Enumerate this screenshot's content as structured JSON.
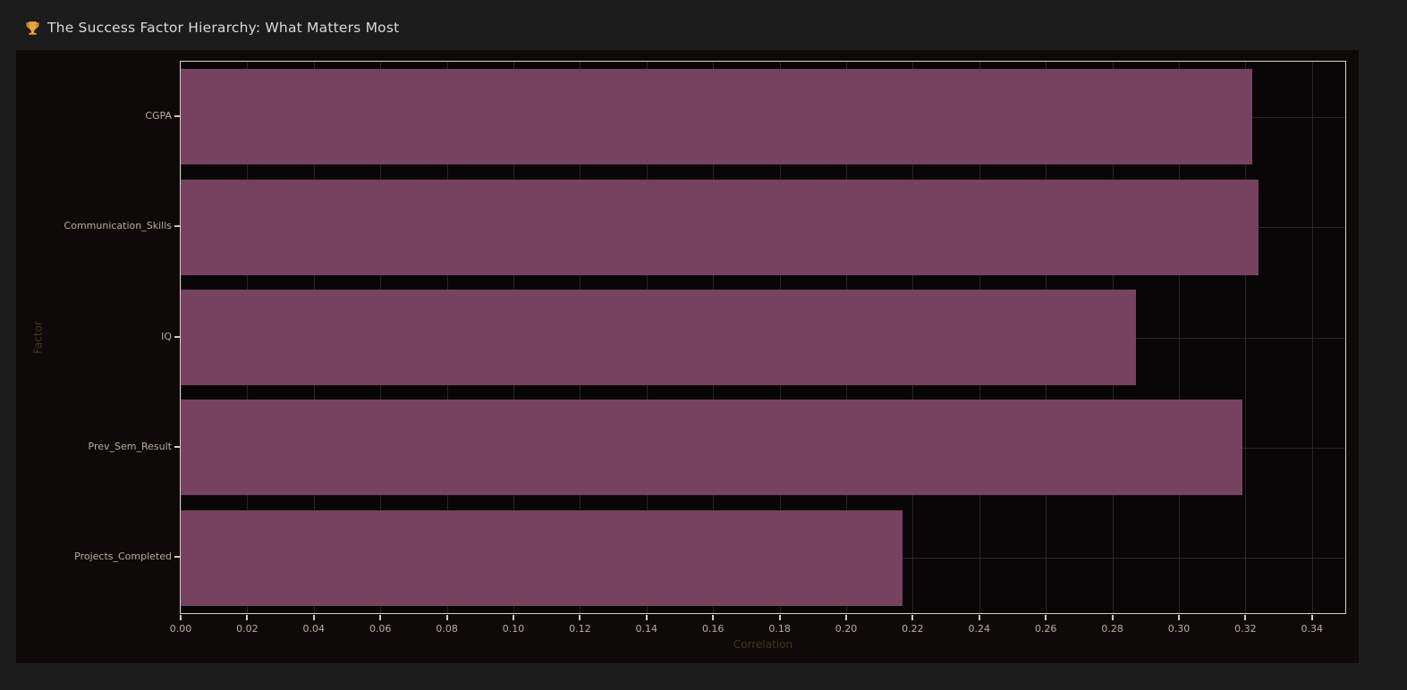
{
  "page": {
    "background": "#1c1c1c"
  },
  "header": {
    "title_icon": "trophy-icon",
    "title_text": "The Success Factor Hierarchy: What Matters Most",
    "full_title": "🏆 The Success Factor Hierarchy: What Matters Most"
  },
  "chart_data": {
    "type": "bar",
    "orientation": "horizontal",
    "title": "🏆 The Success Factor Hierarchy: What Matters Most",
    "categories": [
      "CGPA",
      "Communication_Skills",
      "IQ",
      "Prev_Sem_Result",
      "Projects_Completed"
    ],
    "values": [
      0.322,
      0.324,
      0.287,
      0.319,
      0.217
    ],
    "xlabel": "Correlation",
    "ylabel": "Factor",
    "xlim": [
      0,
      0.35
    ],
    "xtick_labels": [
      "0.00",
      "0.02",
      "0.04",
      "0.06",
      "0.08",
      "0.10",
      "0.12",
      "0.14",
      "0.16",
      "0.18",
      "0.20",
      "0.22",
      "0.24",
      "0.26",
      "0.28",
      "0.30",
      "0.32",
      "0.34"
    ],
    "grid": true,
    "legend": false,
    "colors": {
      "bar": "#77425F",
      "page_bg": "#1c1c1c",
      "figure_bg": "#0d0a09",
      "plot_bg": "#080606",
      "gridline": "#2a2525",
      "spine": "#d5d2cc",
      "tick_label": "#b8ae9f",
      "axis_label": "#44351f",
      "title": "#dcd9d4"
    }
  }
}
